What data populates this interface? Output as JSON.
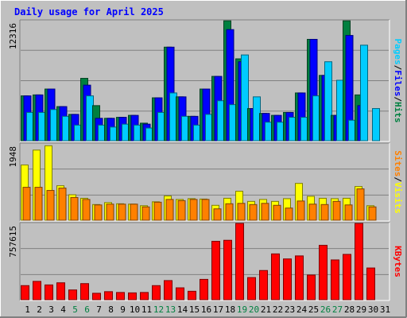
{
  "chart_data": [
    {
      "type": "bar",
      "title": "Daily usage for April 2025",
      "ylabel_parts": [
        "Pages",
        "Files",
        "Hits"
      ],
      "ylabel_colors": [
        "#00ccff",
        "#0000ff",
        "#008040"
      ],
      "ymax_label": "12316",
      "ylim": [
        0,
        12316
      ],
      "categories": [
        "1",
        "2",
        "3",
        "4",
        "5",
        "6",
        "7",
        "8",
        "9",
        "10",
        "11",
        "12",
        "13",
        "14",
        "15",
        "16",
        "17",
        "18",
        "19",
        "20",
        "21",
        "22",
        "23",
        "24",
        "25",
        "26",
        "27",
        "28",
        "29",
        "30",
        "31"
      ],
      "series": [
        {
          "name": "Hits",
          "color": "#008040",
          "values": [
            4600,
            4700,
            5300,
            3500,
            2700,
            6400,
            3600,
            2300,
            2400,
            2600,
            1800,
            4400,
            9600,
            4500,
            2500,
            5300,
            6600,
            12300,
            8400,
            3300,
            2800,
            2600,
            2900,
            4900,
            10400,
            6700,
            2600,
            12300,
            4700,
            0,
            0
          ]
        },
        {
          "name": "Files",
          "color": "#0000ff",
          "values": [
            4600,
            4700,
            5300,
            3500,
            2700,
            5700,
            2300,
            2300,
            2400,
            2600,
            1700,
            4400,
            9600,
            4500,
            2500,
            5300,
            6600,
            11400,
            8100,
            3300,
            2800,
            2600,
            2900,
            4900,
            10400,
            6700,
            2600,
            10800,
            3600,
            0,
            0
          ]
        },
        {
          "name": "Pages",
          "color": "#00ccff",
          "values": [
            2900,
            2900,
            3200,
            2500,
            1600,
            4600,
            1600,
            1400,
            1700,
            1600,
            1300,
            2900,
            4900,
            2500,
            1600,
            2700,
            4100,
            3700,
            8800,
            4500,
            1900,
            1900,
            2400,
            2400,
            4600,
            8100,
            6200,
            2100,
            9800,
            3300,
            0
          ]
        }
      ]
    },
    {
      "type": "bar",
      "ylabel_parts": [
        "Sites",
        "Visits"
      ],
      "ylabel_colors": [
        "#ff8000",
        "#ffff00"
      ],
      "ymax_label": "1948",
      "ylim": [
        0,
        1948
      ],
      "categories": [
        "1",
        "2",
        "3",
        "4",
        "5",
        "6",
        "7",
        "8",
        "9",
        "10",
        "11",
        "12",
        "13",
        "14",
        "15",
        "16",
        "17",
        "18",
        "19",
        "20",
        "21",
        "22",
        "23",
        "24",
        "25",
        "26",
        "27",
        "28",
        "29",
        "30",
        "31"
      ],
      "series": [
        {
          "name": "Visits",
          "color": "#ffff00",
          "values": [
            1410,
            1790,
            1900,
            880,
            650,
            560,
            400,
            450,
            420,
            410,
            370,
            470,
            620,
            530,
            550,
            540,
            380,
            560,
            740,
            480,
            530,
            480,
            550,
            940,
            610,
            560,
            550,
            560,
            860,
            370,
            0
          ]
        },
        {
          "name": "Sites",
          "color": "#ff8000",
          "values": [
            840,
            840,
            760,
            820,
            580,
            530,
            390,
            410,
            410,
            410,
            340,
            460,
            530,
            500,
            530,
            530,
            290,
            420,
            430,
            400,
            430,
            380,
            310,
            490,
            410,
            400,
            480,
            390,
            800,
            340,
            0
          ]
        }
      ]
    },
    {
      "type": "bar",
      "ylabel_parts": [
        "KBytes"
      ],
      "ylabel_colors": [
        "#ff0000"
      ],
      "ymax_label": "757615",
      "ylim": [
        0,
        757615
      ],
      "categories": [
        "1",
        "2",
        "3",
        "4",
        "5",
        "6",
        "7",
        "8",
        "9",
        "10",
        "11",
        "12",
        "13",
        "14",
        "15",
        "16",
        "17",
        "18",
        "19",
        "20",
        "21",
        "22",
        "23",
        "24",
        "25",
        "26",
        "27",
        "28",
        "29",
        "30",
        "31"
      ],
      "series": [
        {
          "name": "KBytes",
          "color": "#ff0000",
          "values": [
            140000,
            182000,
            147000,
            168000,
            97000,
            160000,
            64000,
            80000,
            72000,
            68000,
            72000,
            140000,
            190000,
            118000,
            84000,
            202000,
            580000,
            590000,
            757000,
            220000,
            290000,
            455000,
            405000,
            435000,
            245000,
            540000,
            395000,
            450000,
            757000,
            315000,
            0
          ]
        }
      ]
    }
  ],
  "weekend_days": [
    5,
    6,
    12,
    13,
    19,
    20,
    26,
    27
  ],
  "day_label_colors": {
    "weekday": "#000000",
    "weekend": "#008040"
  }
}
